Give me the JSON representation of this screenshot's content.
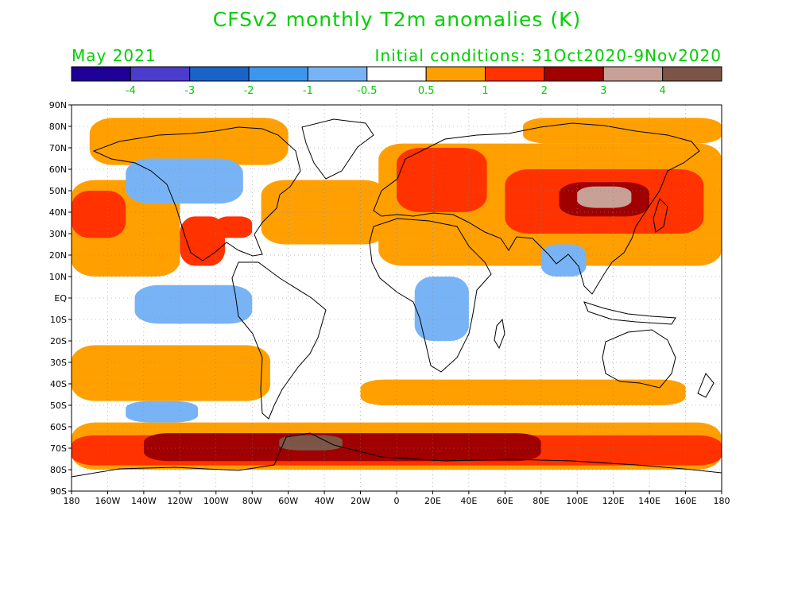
{
  "title": "CFSv2 monthly T2m anomalies (K)",
  "target_month": "May 2021",
  "initial_conditions": "Initial conditions: 31Oct2020-9Nov2020",
  "colorbar": {
    "colors": [
      "#1e0096",
      "#4b3ccb",
      "#1a64c8",
      "#3c96ee",
      "#78b4f5",
      "#ffffff",
      "#ffa000",
      "#ff3200",
      "#a00000",
      "#c8a096",
      "#7d5546"
    ],
    "labels": [
      "-4",
      "-3",
      "-2",
      "-1",
      "-0.5",
      "0.5",
      "1",
      "2",
      "3",
      "4"
    ]
  },
  "y_ticks": [
    "90N",
    "80N",
    "70N",
    "60N",
    "50N",
    "40N",
    "30N",
    "20N",
    "10N",
    "EQ",
    "10S",
    "20S",
    "30S",
    "40S",
    "50S",
    "60S",
    "70S",
    "80S",
    "90S"
  ],
  "x_ticks": [
    "180",
    "160W",
    "140W",
    "120W",
    "100W",
    "80W",
    "60W",
    "40W",
    "20W",
    "0",
    "20E",
    "40E",
    "60E",
    "80E",
    "100E",
    "120E",
    "140E",
    "160E",
    "180"
  ],
  "palette": {
    "light_warm": "#ffa000",
    "warm": "#ff3200",
    "hot": "#a00000",
    "very_hot": "#c8a096",
    "extreme": "#7d5546",
    "light_cool": "#78b4f5",
    "cool": "#3c96ee"
  },
  "regions": [
    {
      "name": "north-pacific-band",
      "level": "light_warm",
      "lon": [
        -180,
        -120
      ],
      "lat": [
        10,
        55
      ]
    },
    {
      "name": "south-pacific-band",
      "level": "light_warm",
      "lon": [
        -180,
        -70
      ],
      "lat": [
        -48,
        -22
      ]
    },
    {
      "name": "southern-ocean-band",
      "level": "light_warm",
      "lon": [
        -180,
        180
      ],
      "lat": [
        -80,
        -58
      ]
    },
    {
      "name": "north-atlantic",
      "level": "light_warm",
      "lon": [
        -75,
        -5
      ],
      "lat": [
        25,
        55
      ]
    },
    {
      "name": "arctic-north-america",
      "level": "light_warm",
      "lon": [
        -170,
        -60
      ],
      "lat": [
        62,
        84
      ]
    },
    {
      "name": "eurasia-band",
      "level": "light_warm",
      "lon": [
        -10,
        180
      ],
      "lat": [
        15,
        72
      ]
    },
    {
      "name": "arctic-siberia",
      "level": "light_warm",
      "lon": [
        70,
        180
      ],
      "lat": [
        72,
        84
      ]
    },
    {
      "name": "indian-ocean-south",
      "level": "light_warm",
      "lon": [
        -20,
        160
      ],
      "lat": [
        -50,
        -38
      ]
    },
    {
      "name": "pacific-east-warm",
      "level": "warm",
      "lon": [
        -180,
        -150
      ],
      "lat": [
        28,
        50
      ]
    },
    {
      "name": "mexico-warm",
      "level": "warm",
      "lon": [
        -120,
        -95
      ],
      "lat": [
        15,
        38
      ]
    },
    {
      "name": "gulf-warm",
      "level": "warm",
      "lon": [
        -100,
        -80
      ],
      "lat": [
        28,
        38
      ]
    },
    {
      "name": "europe-warm",
      "level": "warm",
      "lon": [
        0,
        50
      ],
      "lat": [
        40,
        70
      ]
    },
    {
      "name": "asia-warm",
      "level": "warm",
      "lon": [
        60,
        170
      ],
      "lat": [
        30,
        60
      ]
    },
    {
      "name": "southern-ocean-warm",
      "level": "warm",
      "lon": [
        -180,
        180
      ],
      "lat": [
        -78,
        -64
      ]
    },
    {
      "name": "asia-hot",
      "level": "hot",
      "lon": [
        90,
        140
      ],
      "lat": [
        38,
        54
      ]
    },
    {
      "name": "antarctic-hot",
      "level": "hot",
      "lon": [
        -140,
        80
      ],
      "lat": [
        -76,
        -63
      ]
    },
    {
      "name": "mongolia-very-hot",
      "level": "very_hot",
      "lon": [
        100,
        130
      ],
      "lat": [
        42,
        52
      ]
    },
    {
      "name": "weddell-extreme",
      "level": "extreme",
      "lon": [
        -65,
        -30
      ],
      "lat": [
        -71,
        -64
      ]
    },
    {
      "name": "canada-cool",
      "level": "light_cool",
      "lon": [
        -150,
        -85
      ],
      "lat": [
        44,
        65
      ]
    },
    {
      "name": "eastern-pacific-cool",
      "level": "light_cool",
      "lon": [
        -145,
        -80
      ],
      "lat": [
        -12,
        6
      ]
    },
    {
      "name": "south-pacific-cool",
      "level": "light_cool",
      "lon": [
        -150,
        -110
      ],
      "lat": [
        -58,
        -48
      ]
    },
    {
      "name": "east-africa-cool",
      "level": "light_cool",
      "lon": [
        10,
        40
      ],
      "lat": [
        -20,
        10
      ]
    },
    {
      "name": "india-cool",
      "level": "light_cool",
      "lon": [
        80,
        105
      ],
      "lat": [
        10,
        25
      ]
    }
  ]
}
